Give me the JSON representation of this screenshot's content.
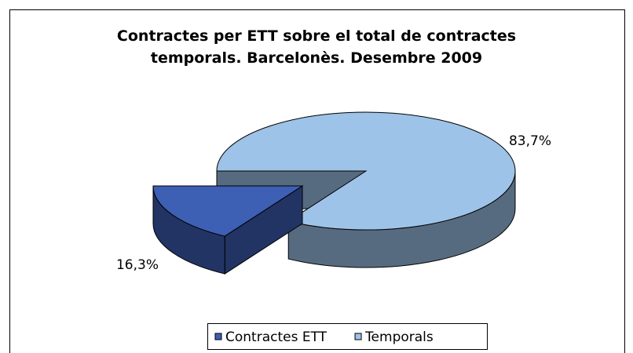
{
  "chart_data": {
    "type": "pie3d",
    "title": "Contractes per ETT sobre el total de contractes temporals. Barcelonès. Desembre 2009",
    "categories": [
      "Contractes ETT",
      "Temporals"
    ],
    "values": [
      16.3,
      83.7
    ],
    "value_labels": [
      "16,3%",
      "83,7%"
    ],
    "colors": [
      "#3d5fb4",
      "#9ec3e8"
    ],
    "legend": "bottom"
  }
}
